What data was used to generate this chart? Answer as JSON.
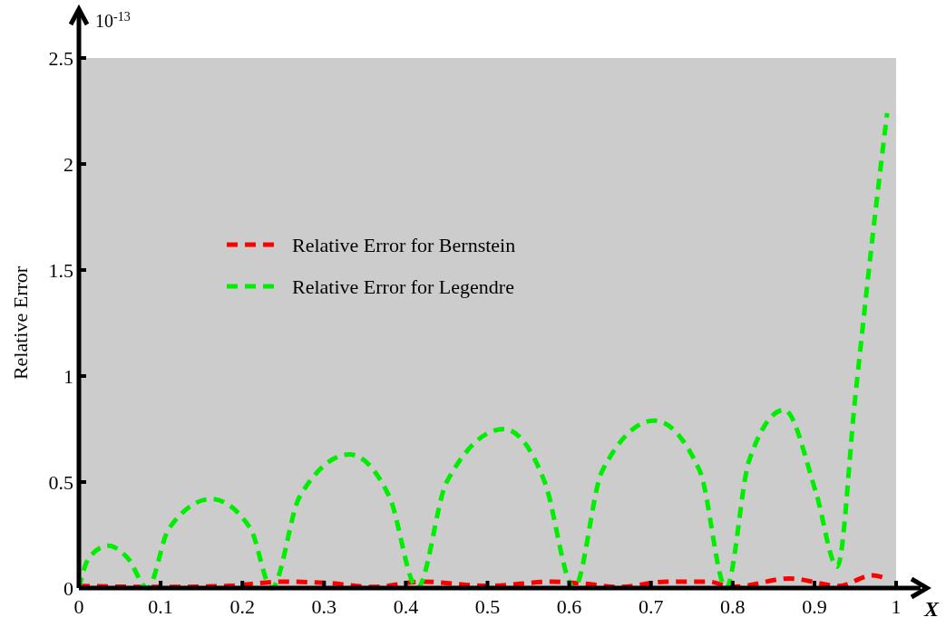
{
  "chart_data": {
    "type": "line",
    "ylabel": "Relative Error",
    "xlabel": "X",
    "annotations": [
      "10$^{-13}$"
    ],
    "xlim": [
      0,
      1
    ],
    "ylim": [
      0,
      2.5
    ],
    "xticks": [
      0,
      0.1,
      0.2,
      0.3,
      0.4,
      0.5,
      0.6,
      0.7,
      0.8,
      0.9,
      1
    ],
    "yticks": [
      0,
      0.5,
      1,
      1.5,
      2,
      2.5
    ],
    "legend": "left",
    "line_style": "dashed",
    "grid": false,
    "series": [
      {
        "name": "Relative Error for Bernstein",
        "color": "#ff0000",
        "x": [
          0,
          0.1,
          0.18,
          0.25,
          0.3,
          0.36,
          0.42,
          0.5,
          0.58,
          0.62,
          0.66,
          0.72,
          0.77,
          0.8,
          0.87,
          0.93,
          0.971,
          0.985
        ],
        "values": [
          0.01,
          0.005,
          0.01,
          0.03,
          0.025,
          0.005,
          0.03,
          0.01,
          0.03,
          0.02,
          0.005,
          0.03,
          0.03,
          0.005,
          0.045,
          0.01,
          0.06,
          0.05
        ]
      },
      {
        "name": "Relative Error for Legendre",
        "color": "#00ee00",
        "x": [
          0,
          0.012,
          0.036,
          0.06,
          0.084,
          0.11,
          0.162,
          0.21,
          0.236,
          0.27,
          0.331,
          0.38,
          0.414,
          0.45,
          0.52,
          0.57,
          0.606,
          0.64,
          0.704,
          0.76,
          0.792,
          0.82,
          0.863,
          0.902,
          0.928,
          0.95,
          0.971,
          0.989
        ],
        "values": [
          0,
          0.14,
          0.2,
          0.14,
          0,
          0.28,
          0.42,
          0.28,
          0,
          0.43,
          0.63,
          0.43,
          0,
          0.5,
          0.75,
          0.5,
          0,
          0.55,
          0.79,
          0.55,
          0,
          0.6,
          0.84,
          0.45,
          0.1,
          0.9,
          1.65,
          2.24
        ]
      }
    ]
  }
}
